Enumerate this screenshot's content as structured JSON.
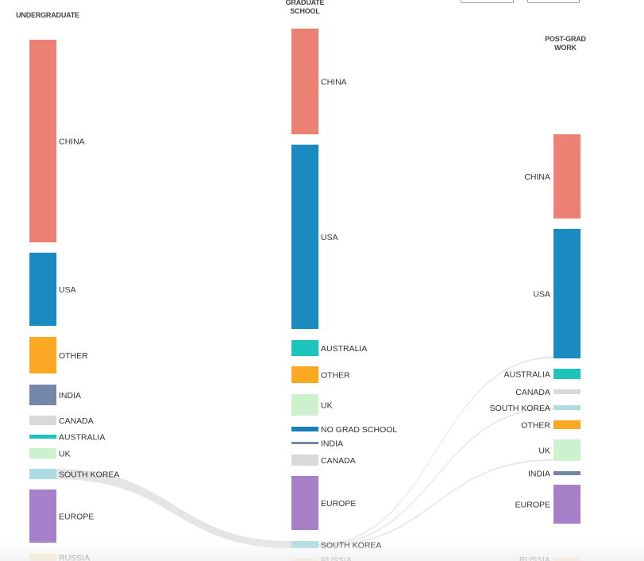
{
  "columns": [
    {
      "title": "UNDERGRADUATE",
      "nodes": [
        {
          "label": "CHINA",
          "color": "#ec8073"
        },
        {
          "label": "USA",
          "color": "#1a8bc0"
        },
        {
          "label": "OTHER",
          "color": "#fda823"
        },
        {
          "label": "INDIA",
          "color": "#7487a8"
        },
        {
          "label": "CANADA",
          "color": "#d9d9d9"
        },
        {
          "label": "AUSTRALIA",
          "color": "#1cc4bd"
        },
        {
          "label": "UK",
          "color": "#cdf0cd"
        },
        {
          "label": "SOUTH KOREA",
          "color": "#acdbe3"
        },
        {
          "label": "EUROPE",
          "color": "#a680c8"
        },
        {
          "label": "RUSSIA",
          "color": "#f8e4b6"
        }
      ]
    },
    {
      "title_line1": "GRADUATE",
      "title_line2": "SCHOOL",
      "nodes": [
        {
          "label": "CHINA",
          "color": "#ec8073"
        },
        {
          "label": "USA",
          "color": "#1a8bc0"
        },
        {
          "label": "AUSTRALIA",
          "color": "#1cc4bd"
        },
        {
          "label": "OTHER",
          "color": "#fda823"
        },
        {
          "label": "UK",
          "color": "#cdf0cd"
        },
        {
          "label": "NO GRAD SCHOOL",
          "color": "#1a80b8"
        },
        {
          "label": "INDIA",
          "color": "#7487a8"
        },
        {
          "label": "CANADA",
          "color": "#d9d9d9"
        },
        {
          "label": "EUROPE",
          "color": "#a680c8"
        },
        {
          "label": "SOUTH KOREA",
          "color": "#acdbe3"
        },
        {
          "label": "RUSSIA",
          "color": "#f8e4b6"
        }
      ]
    },
    {
      "title_line1": "POST-GRAD",
      "title_line2": "WORK",
      "nodes": [
        {
          "label": "CHINA",
          "color": "#ec8073"
        },
        {
          "label": "USA",
          "color": "#1a8bc0"
        },
        {
          "label": "AUSTRALIA",
          "color": "#1cc4bd"
        },
        {
          "label": "CANADA",
          "color": "#d9d9d9"
        },
        {
          "label": "SOUTH KOREA",
          "color": "#acdbe3"
        },
        {
          "label": "OTHER",
          "color": "#fda823"
        },
        {
          "label": "UK",
          "color": "#cdf0cd"
        },
        {
          "label": "INDIA",
          "color": "#7487a8"
        },
        {
          "label": "EUROPE",
          "color": "#a680c8"
        },
        {
          "label": "RUSSIA",
          "color": "#f8e4b6"
        }
      ]
    }
  ],
  "links": [
    {
      "from": "UNDERGRADUATE: SOUTH KOREA",
      "to": "GRADUATE SCHOOL: SOUTH KOREA"
    },
    {
      "from": "GRADUATE SCHOOL: SOUTH KOREA",
      "to": "POST-GRAD WORK: USA"
    },
    {
      "from": "GRADUATE SCHOOL: SOUTH KOREA",
      "to": "POST-GRAD WORK: SOUTH KOREA"
    },
    {
      "from": "GRADUATE SCHOOL: SOUTH KOREA",
      "to": "POST-GRAD WORK: UK"
    }
  ],
  "link_color": "#e2e2e2"
}
